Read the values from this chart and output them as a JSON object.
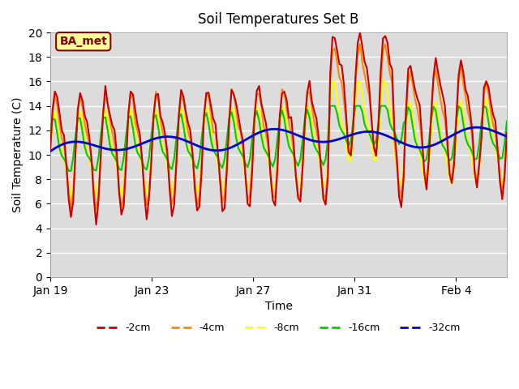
{
  "title": "Soil Temperatures Set B",
  "xlabel": "Time",
  "ylabel": "Soil Temperature (C)",
  "annotation": "BA_met",
  "ylim": [
    0,
    20
  ],
  "yticks": [
    0,
    2,
    4,
    6,
    8,
    10,
    12,
    14,
    16,
    18,
    20
  ],
  "xtick_labels": [
    "Jan 19",
    "Jan 23",
    "Jan 27",
    "Jan 31",
    "Feb 4"
  ],
  "xtick_positions": [
    0,
    4,
    8,
    12,
    16
  ],
  "legend_labels": [
    "-2cm",
    "-4cm",
    "-8cm",
    "-16cm",
    "-32cm"
  ],
  "legend_colors": [
    "#cc0000",
    "#ff8800",
    "#ffff00",
    "#00cc00",
    "#0000cc"
  ],
  "bg_color": "#e8e8e8",
  "plot_bg_color": "#e0e0e0",
  "line_width": 1.5
}
